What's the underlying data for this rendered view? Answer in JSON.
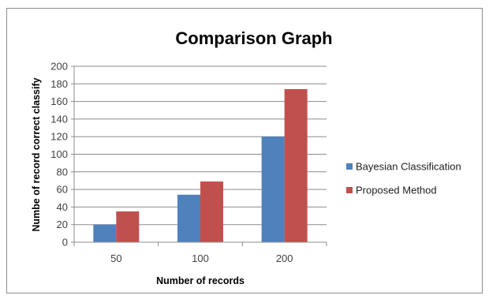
{
  "chart_data": {
    "type": "bar",
    "title": "Comparison Graph",
    "xlabel": "Number of records",
    "ylabel": "Numbe of record correct classify",
    "categories": [
      "50",
      "100",
      "200"
    ],
    "series": [
      {
        "name": "Bayesian Classification",
        "values": [
          20,
          54,
          120
        ],
        "color": "#4f81bd"
      },
      {
        "name": "Proposed Method",
        "values": [
          35,
          69,
          174
        ],
        "color": "#c0504d"
      }
    ],
    "ylim": [
      0,
      200
    ],
    "yticks": [
      0,
      20,
      40,
      60,
      80,
      100,
      120,
      140,
      160,
      180,
      200
    ],
    "grid": true,
    "legend_position": "right"
  }
}
